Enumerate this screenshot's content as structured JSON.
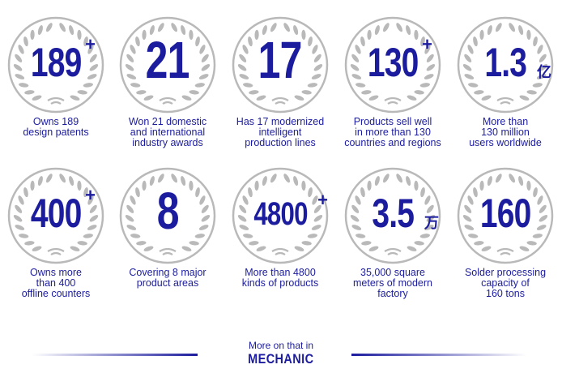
{
  "colors": {
    "accent": "#1c1c9e",
    "wreath": "#b9b9b9"
  },
  "badges": [
    {
      "number": "189",
      "suffix": "+",
      "caption": [
        "Owns 189",
        "design patents"
      ]
    },
    {
      "number": "21",
      "suffix": "",
      "caption": [
        "Won 21 domestic",
        "and  international",
        "industry awards"
      ]
    },
    {
      "number": "17",
      "suffix": "",
      "caption": [
        "Has 17 modernized",
        "intelligent",
        "production lines"
      ]
    },
    {
      "number": "130",
      "suffix": "+",
      "caption": [
        "Products sell well",
        "in more than 130",
        "countries and regions"
      ]
    },
    {
      "number": "1.3",
      "suffix": "亿",
      "caption": [
        "More than",
        "130 million",
        "users worldwide"
      ]
    },
    {
      "number": "400",
      "suffix": "+",
      "caption": [
        "Owns more",
        "than 400",
        "offline counters"
      ]
    },
    {
      "number": "8",
      "suffix": "",
      "caption": [
        "Covering 8 major",
        "product areas"
      ]
    },
    {
      "number": "4800",
      "suffix": "+",
      "caption": [
        "More than 4800",
        "kinds of products"
      ]
    },
    {
      "number": "3.5",
      "suffix": "万",
      "caption": [
        "35,000 square",
        "meters of modern",
        "factory"
      ]
    },
    {
      "number": "160",
      "suffix": "",
      "caption": [
        "Solder processing",
        "capacity of",
        "160 tons"
      ]
    }
  ],
  "footer": {
    "line1": "More on that in",
    "brand": "MECHANIC"
  }
}
